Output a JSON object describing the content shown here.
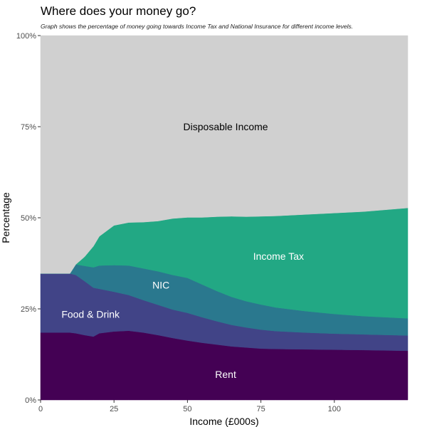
{
  "header": {
    "title": "Where does your money go?",
    "subtitle": "Graph shows the percentage of money going towards Income Tax and National Insurance for different income levels."
  },
  "chart_data": {
    "type": "area",
    "stacked": true,
    "xlabel": "Income (£000s)",
    "ylabel": "Percentage",
    "xlim": [
      0,
      125
    ],
    "ylim": [
      0,
      100
    ],
    "x_ticks": [
      0,
      25,
      50,
      75,
      100
    ],
    "y_ticks": [
      0,
      25,
      50,
      75,
      100
    ],
    "y_tick_labels": [
      "0%",
      "25%",
      "50%",
      "75%",
      "100%"
    ],
    "legend": "none",
    "x": [
      0,
      5,
      10,
      12,
      15,
      18,
      20,
      25,
      30,
      35,
      40,
      45,
      50,
      55,
      60,
      65,
      70,
      75,
      80,
      90,
      100,
      110,
      125
    ],
    "series": [
      {
        "name": "Rent",
        "color": "#440154",
        "label_color": "#ffffff",
        "label_at": [
          63,
          7
        ],
        "values": [
          18.5,
          18.5,
          18.5,
          18.3,
          17.8,
          17.4,
          18.3,
          18.8,
          19.0,
          18.5,
          17.8,
          17.0,
          16.3,
          15.7,
          15.2,
          14.7,
          14.4,
          14.1,
          14.0,
          13.9,
          13.8,
          13.7,
          13.5
        ]
      },
      {
        "name": "Food & Drink",
        "color": "#414487",
        "label_color": "#ffffff",
        "label_at": [
          17,
          23.5
        ],
        "values": [
          16.2,
          16.2,
          16.2,
          16.0,
          14.8,
          13.4,
          12.2,
          10.9,
          9.8,
          8.9,
          8.3,
          7.8,
          7.6,
          7.0,
          6.4,
          5.9,
          5.5,
          5.2,
          4.9,
          4.6,
          4.4,
          4.3,
          4.2
        ]
      },
      {
        "name": "NIC",
        "color": "#2a788e",
        "label_color": "#ffffff",
        "label_at": [
          41,
          31.5
        ],
        "values": [
          0,
          0,
          0,
          2.9,
          4.2,
          5.6,
          6.4,
          7.3,
          8.1,
          8.7,
          9.2,
          9.5,
          9.6,
          9.0,
          8.3,
          7.7,
          7.2,
          6.9,
          6.5,
          5.9,
          5.4,
          5.0,
          4.7
        ]
      },
      {
        "name": "Income Tax",
        "color": "#22a884",
        "label_color": "#ffffff",
        "label_at": [
          81,
          39.5
        ],
        "values": [
          0,
          0,
          0,
          0,
          2.5,
          5.8,
          8.0,
          10.9,
          11.8,
          12.7,
          13.8,
          15.5,
          16.6,
          18.4,
          20.4,
          22.1,
          23.2,
          24.2,
          25.1,
          26.5,
          27.7,
          28.7,
          30.3
        ]
      },
      {
        "name": "Disposable Income",
        "color": "#d0d0d0",
        "label_color": "#000000",
        "label_at": [
          63,
          75
        ],
        "values": [
          65.3,
          65.3,
          65.3,
          62.8,
          60.7,
          57.8,
          55.1,
          52.1,
          51.3,
          51.2,
          50.9,
          50.2,
          49.9,
          49.9,
          49.7,
          49.6,
          49.7,
          49.6,
          49.5,
          49.1,
          48.7,
          48.3,
          47.3
        ]
      }
    ]
  }
}
